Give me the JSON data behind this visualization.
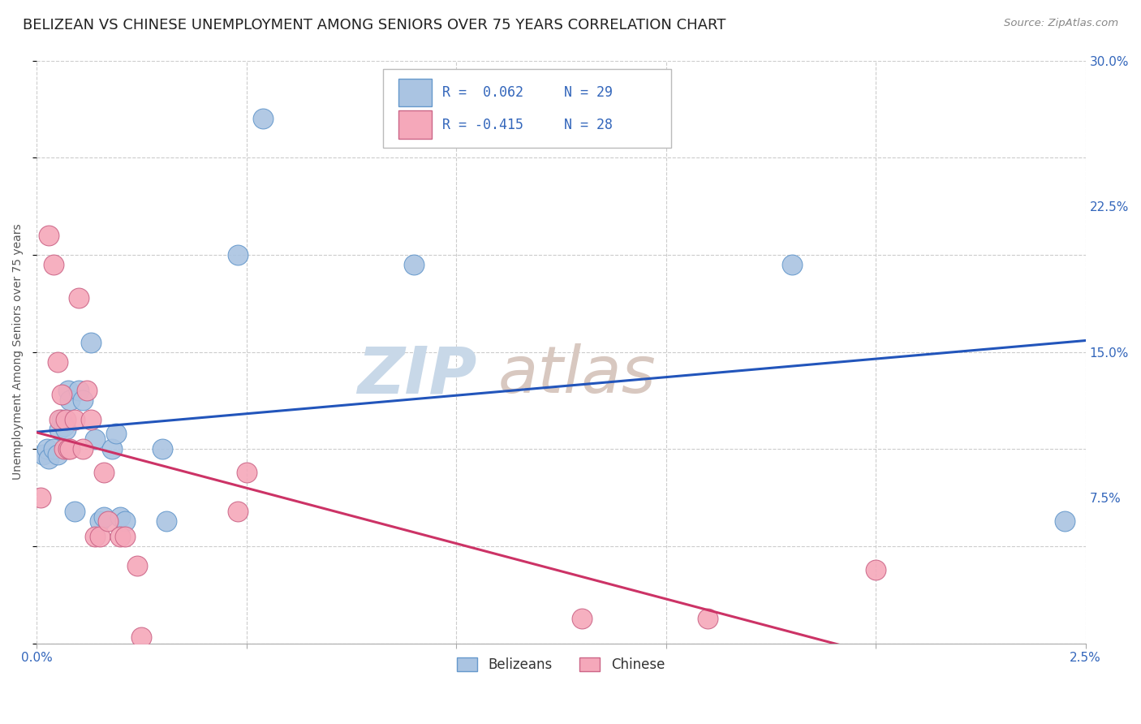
{
  "title": "BELIZEAN VS CHINESE UNEMPLOYMENT AMONG SENIORS OVER 75 YEARS CORRELATION CHART",
  "source": "Source: ZipAtlas.com",
  "ylabel": "Unemployment Among Seniors over 75 years",
  "xlim": [
    0.0,
    0.025
  ],
  "ylim": [
    0.0,
    0.3
  ],
  "xticks": [
    0.0,
    0.005,
    0.01,
    0.015,
    0.02,
    0.025
  ],
  "xticklabels": [
    "0.0%",
    "",
    "",
    "",
    "",
    "2.5%"
  ],
  "yticks": [
    0.0,
    0.075,
    0.15,
    0.225,
    0.3
  ],
  "yticklabels": [
    "",
    "7.5%",
    "15.0%",
    "22.5%",
    "30.0%"
  ],
  "belizean_color": "#aac4e2",
  "chinese_color": "#f5a8ba",
  "belizean_line_color": "#2255bb",
  "chinese_line_color": "#cc3366",
  "legend_r_belizean": "R =  0.062",
  "legend_n_belizean": "N = 29",
  "legend_r_chinese": "R = -0.415",
  "legend_n_chinese": "N = 28",
  "grid_color": "#cccccc",
  "background_color": "#ffffff",
  "title_fontsize": 13,
  "axis_label_fontsize": 10,
  "tick_fontsize": 11,
  "legend_fontsize": 12,
  "watermark_zip_color": "#c8d8e8",
  "watermark_atlas_color": "#d8c8c0",
  "watermark_fontsize": 58,
  "belizean_points": [
    [
      0.00015,
      0.097
    ],
    [
      0.00025,
      0.1
    ],
    [
      0.0003,
      0.095
    ],
    [
      0.0004,
      0.1
    ],
    [
      0.0005,
      0.097
    ],
    [
      0.00055,
      0.11
    ],
    [
      0.0006,
      0.115
    ],
    [
      0.00065,
      0.112
    ],
    [
      0.0007,
      0.11
    ],
    [
      0.00075,
      0.13
    ],
    [
      0.0008,
      0.125
    ],
    [
      0.0009,
      0.068
    ],
    [
      0.001,
      0.13
    ],
    [
      0.0011,
      0.125
    ],
    [
      0.0013,
      0.155
    ],
    [
      0.0014,
      0.105
    ],
    [
      0.0015,
      0.063
    ],
    [
      0.0016,
      0.065
    ],
    [
      0.0018,
      0.1
    ],
    [
      0.0019,
      0.108
    ],
    [
      0.002,
      0.065
    ],
    [
      0.0021,
      0.063
    ],
    [
      0.003,
      0.1
    ],
    [
      0.0031,
      0.063
    ],
    [
      0.0048,
      0.2
    ],
    [
      0.0054,
      0.27
    ],
    [
      0.009,
      0.195
    ],
    [
      0.018,
      0.195
    ],
    [
      0.0245,
      0.063
    ]
  ],
  "chinese_points": [
    [
      0.0001,
      0.075
    ],
    [
      0.0003,
      0.21
    ],
    [
      0.0004,
      0.195
    ],
    [
      0.0005,
      0.145
    ],
    [
      0.00055,
      0.115
    ],
    [
      0.0006,
      0.128
    ],
    [
      0.00065,
      0.1
    ],
    [
      0.0007,
      0.115
    ],
    [
      0.00075,
      0.1
    ],
    [
      0.0008,
      0.1
    ],
    [
      0.0009,
      0.115
    ],
    [
      0.001,
      0.178
    ],
    [
      0.0011,
      0.1
    ],
    [
      0.0012,
      0.13
    ],
    [
      0.0013,
      0.115
    ],
    [
      0.0014,
      0.055
    ],
    [
      0.0015,
      0.055
    ],
    [
      0.0016,
      0.088
    ],
    [
      0.0017,
      0.063
    ],
    [
      0.002,
      0.055
    ],
    [
      0.0021,
      0.055
    ],
    [
      0.0024,
      0.04
    ],
    [
      0.0025,
      0.003
    ],
    [
      0.0048,
      0.068
    ],
    [
      0.005,
      0.088
    ],
    [
      0.013,
      0.013
    ],
    [
      0.016,
      0.013
    ],
    [
      0.02,
      0.038
    ]
  ]
}
